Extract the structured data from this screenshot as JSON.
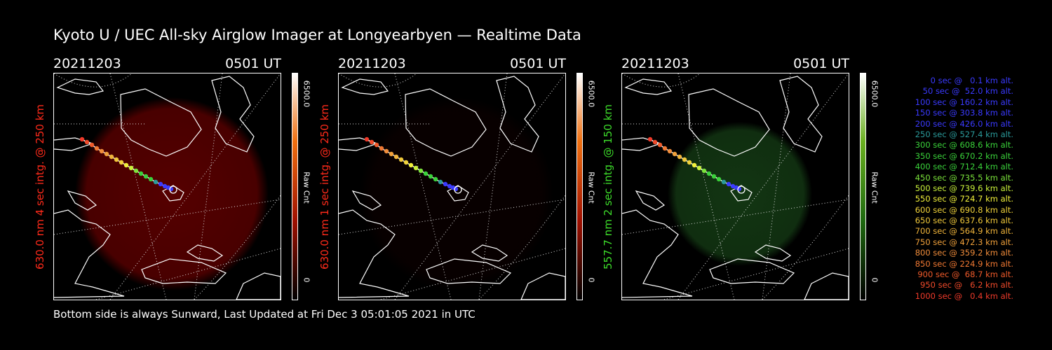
{
  "title": "Kyoto U / UEC All-sky Airglow Imager at Longyearbyen — Realtime Data",
  "footer": "Bottom side is always Sunward, Last Updated at Fri Dec  3 05:01:05 2021 in UTC",
  "panels": [
    {
      "date": "20211203",
      "time": "0501 UT",
      "side_label": "630.0 nm 4 sec intg. @ 250 km",
      "label_color": "#ff2a1a",
      "glow_color": "#7a0000",
      "glow_level": 0.7,
      "colorbar_max": "6500.0",
      "colorbar_min": "0",
      "colorbar_label": "Raw Cnt",
      "colorbar_scale": "hot"
    },
    {
      "date": "20211203",
      "time": "0501 UT",
      "side_label": "630.0 nm 1 sec intg. @ 250 km",
      "label_color": "#ff2a1a",
      "glow_color": "#3a0000",
      "glow_level": 0.15,
      "colorbar_max": "6500.0",
      "colorbar_min": "0",
      "colorbar_label": "Raw Cnt",
      "colorbar_scale": "hot"
    },
    {
      "date": "20211203",
      "time": "0501 UT",
      "side_label": "557.7 nm 2 sec intg. @ 150 km",
      "label_color": "#3ddc2a",
      "glow_color": "#1f5a1f",
      "glow_level": 0.6,
      "colorbar_max": "6500.0",
      "colorbar_min": "0",
      "colorbar_label": "Raw Cnt",
      "colorbar_scale": "green"
    }
  ],
  "legend": [
    {
      "text": "0 sec @   0.1 km alt.",
      "color": "#3a3aff"
    },
    {
      "text": "50 sec @  52.0 km alt.",
      "color": "#3a3aff"
    },
    {
      "text": "100 sec @ 160.2 km alt.",
      "color": "#3a3aff"
    },
    {
      "text": "150 sec @ 303.8 km alt.",
      "color": "#3a3aff"
    },
    {
      "text": "200 sec @ 426.0 km alt.",
      "color": "#3a3aff"
    },
    {
      "text": "250 sec @ 527.4 km alt.",
      "color": "#2a9a9a"
    },
    {
      "text": "300 sec @ 608.6 km alt.",
      "color": "#3ad23a"
    },
    {
      "text": "350 sec @ 670.2 km alt.",
      "color": "#3ad23a"
    },
    {
      "text": "400 sec @ 712.4 km alt.",
      "color": "#3ad23a"
    },
    {
      "text": "450 sec @ 735.5 km alt.",
      "color": "#7ae23a"
    },
    {
      "text": "500 sec @ 739.6 km alt.",
      "color": "#c8f03a"
    },
    {
      "text": "550 sec @ 724.7 km alt.",
      "color": "#f0f03a"
    },
    {
      "text": "600 sec @ 690.8 km alt.",
      "color": "#f0d23a"
    },
    {
      "text": "650 sec @ 637.6 km alt.",
      "color": "#f0c83a"
    },
    {
      "text": "700 sec @ 564.9 km alt.",
      "color": "#f0b43a"
    },
    {
      "text": "750 sec @ 472.3 km alt.",
      "color": "#f0a03a"
    },
    {
      "text": "800 sec @ 359.2 km alt.",
      "color": "#f08c3a"
    },
    {
      "text": "850 sec @ 224.9 km alt.",
      "color": "#f07832"
    },
    {
      "text": "900 sec @  68.7 km alt.",
      "color": "#f05a2a"
    },
    {
      "text": "950 sec @   6.2 km alt.",
      "color": "#f04a2a"
    },
    {
      "text": "1000 sec @   0.4 km alt.",
      "color": "#f03a2a"
    }
  ]
}
